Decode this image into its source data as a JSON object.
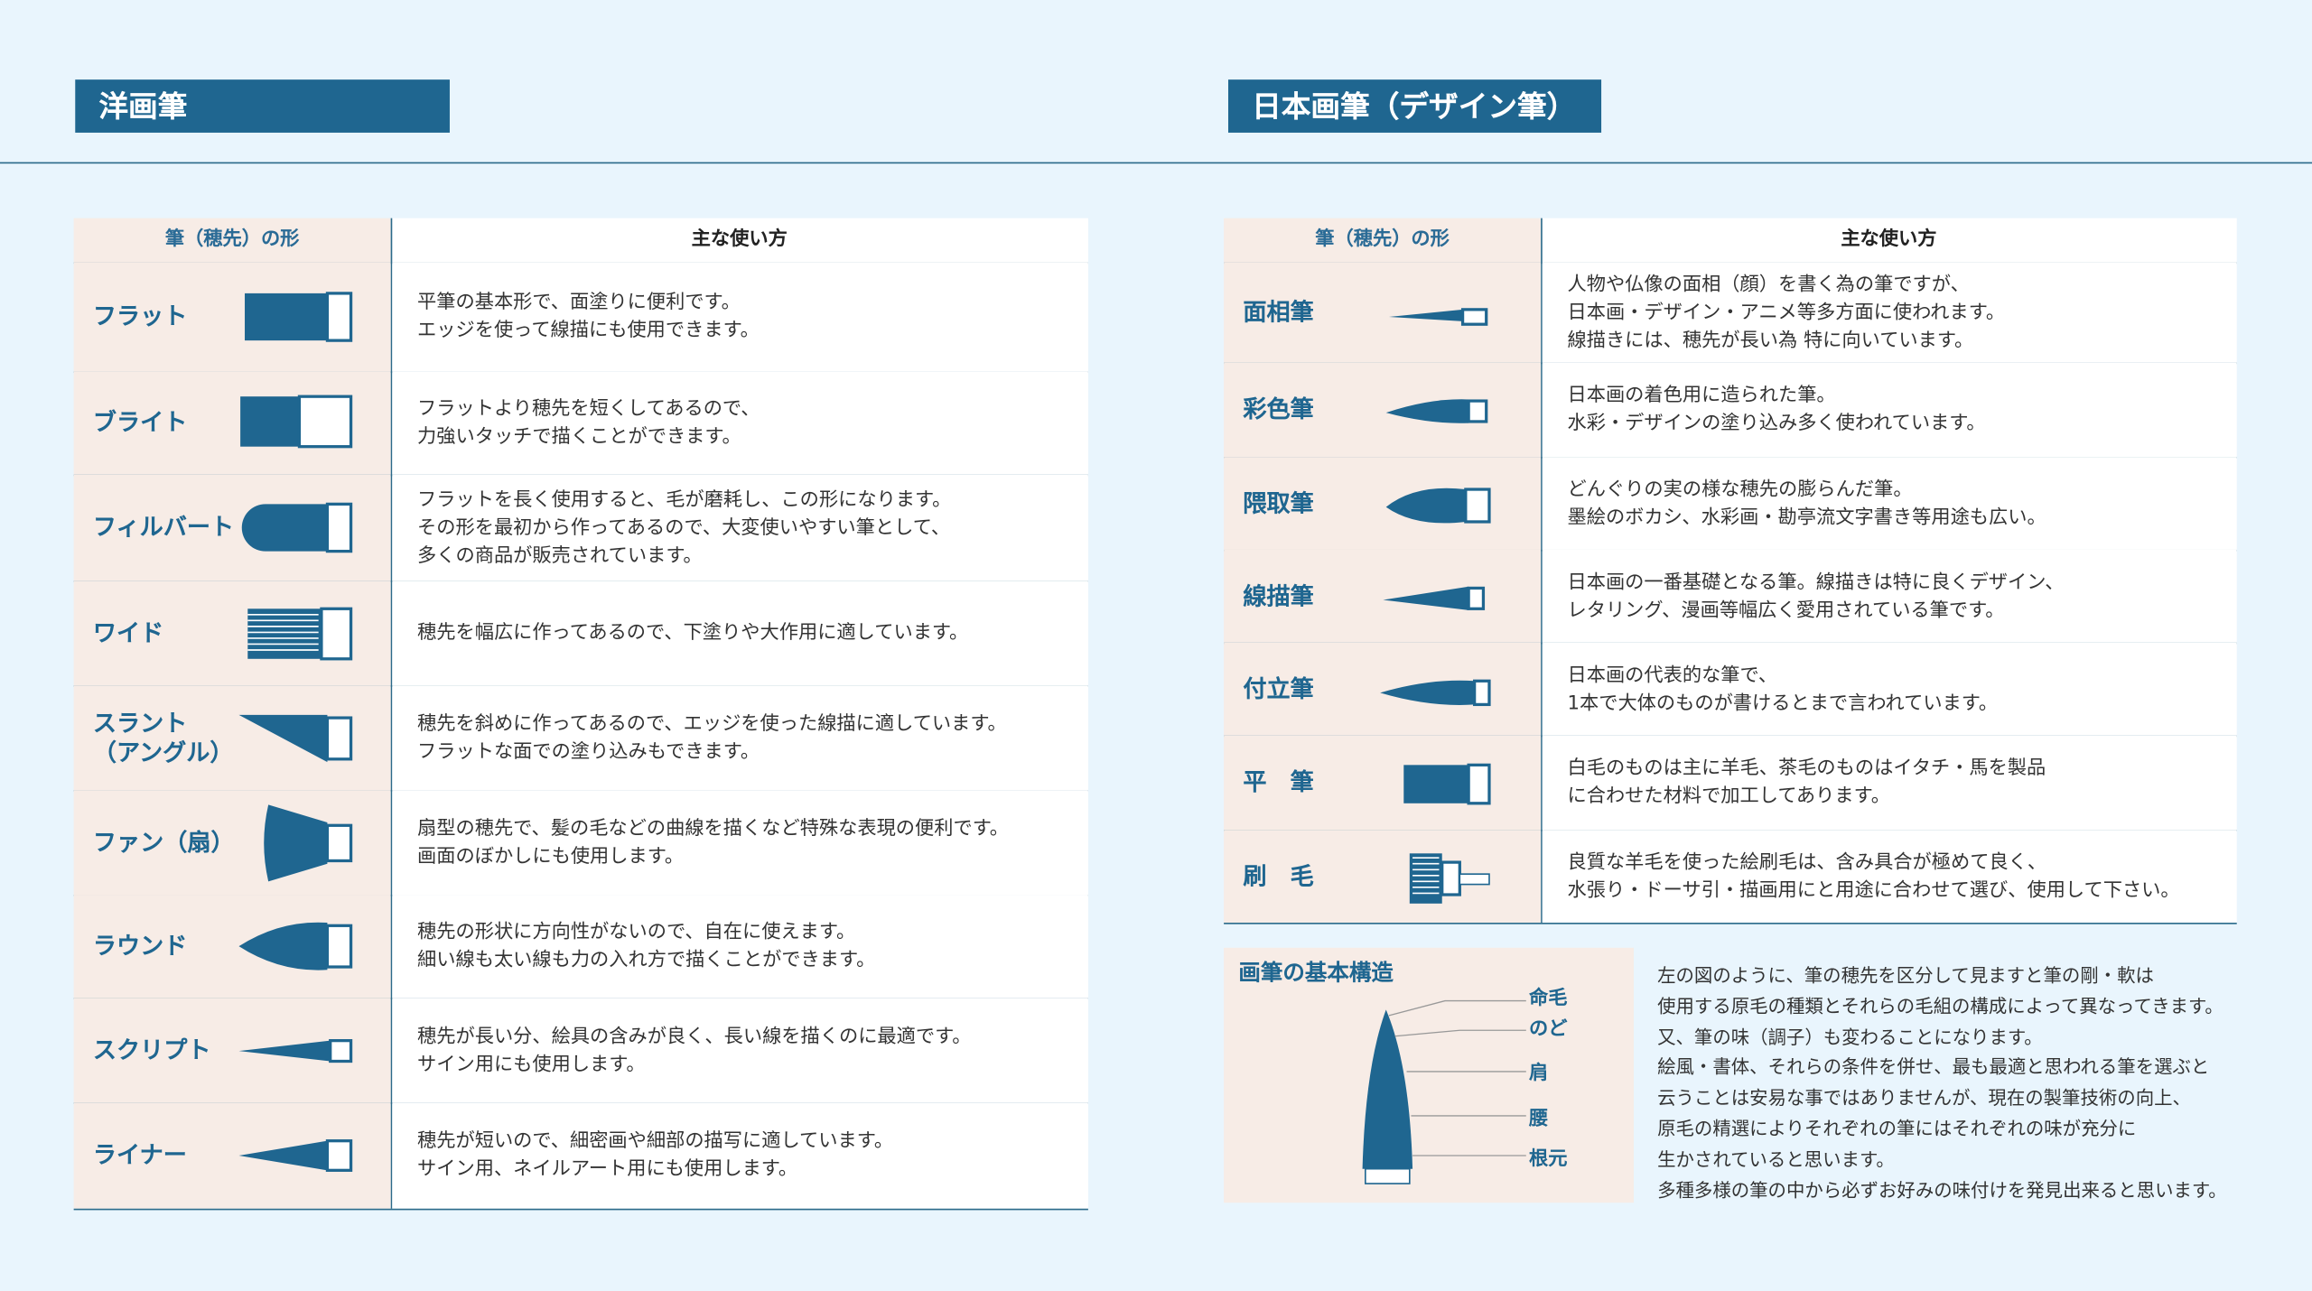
{
  "western": {
    "title": "洋画筆",
    "header": [
      "筆（穂先）の形",
      "主な使い方"
    ],
    "rows": [
      {
        "name": [
          "フラット"
        ],
        "desc": [
          "平筆の基本形で、面塗りに便利です。",
          "エッジを使って線描にも使用できます。"
        ]
      },
      {
        "name": [
          "ブライト"
        ],
        "desc": [
          "フラットより穂先を短くしてあるので、",
          "力強いタッチで描くことができます。"
        ]
      },
      {
        "name": [
          "フィルバート"
        ],
        "desc": [
          "フラットを長く使用すると、毛が磨耗し、この形になります。",
          "その形を最初から作ってあるので、大変使いやすい筆として、",
          "多くの商品が販売されています。"
        ]
      },
      {
        "name": [
          "ワイド"
        ],
        "desc": [
          "穂先を幅広に作ってあるので、下塗りや大作用に適しています。"
        ]
      },
      {
        "name": [
          "スラント",
          "（アングル）"
        ],
        "desc": [
          "穂先を斜めに作ってあるので、エッジを使った線描に適しています。",
          "フラットな面での塗り込みもできます。"
        ]
      },
      {
        "name": [
          "ファン（扇）"
        ],
        "desc": [
          "扇型の穂先で、髪の毛などの曲線を描くなど特殊な表現の便利です。",
          "画面のぼかしにも使用します。"
        ]
      },
      {
        "name": [
          "ラウンド"
        ],
        "desc": [
          "穂先の形状に方向性がないので、自在に使えます。",
          "細い線も太い線も力の入れ方で描くことができます。"
        ]
      },
      {
        "name": [
          "スクリプト"
        ],
        "desc": [
          "穂先が長い分、絵具の含みが良く、長い線を描くのに最適です。",
          "サイン用にも使用します。"
        ]
      },
      {
        "name": [
          "ライナー"
        ],
        "desc": [
          "穂先が短いので、細密画や細部の描写に適しています。",
          "サイン用、ネイルアート用にも使用します。"
        ]
      }
    ]
  },
  "japanese": {
    "title": "日本画筆（デザイン筆）",
    "header": [
      "筆（穂先）の形",
      "主な使い方"
    ],
    "rows": [
      {
        "name": [
          "面相筆"
        ],
        "desc": [
          "人物や仏像の面相（顔）を書く為の筆ですが、",
          "日本画・デザイン・アニメ等多方面に使われます。",
          "線描きには、穂先が長い為 特に向いています。"
        ]
      },
      {
        "name": [
          "彩色筆"
        ],
        "desc": [
          "日本画の着色用に造られた筆。",
          "水彩・デザインの塗り込み多く使われています。"
        ]
      },
      {
        "name": [
          "隈取筆"
        ],
        "desc": [
          "どんぐりの実の様な穂先の膨らんだ筆。",
          "墨絵のボカシ、水彩画・勘亭流文字書き等用途も広い。"
        ]
      },
      {
        "name": [
          "線描筆"
        ],
        "desc": [
          "日本画の一番基礎となる筆。線描きは特に良くデザイン、",
          "レタリング、漫画等幅広く愛用されている筆です。"
        ]
      },
      {
        "name": [
          "付立筆"
        ],
        "desc": [
          "日本画の代表的な筆で、",
          "1本で大体のものが書けるとまで言われています。"
        ]
      },
      {
        "name": [
          "平　筆"
        ],
        "desc": [
          "白毛のものは主に羊毛、茶毛のものはイタチ・馬を製品",
          "に合わせた材料で加工してあります。"
        ]
      },
      {
        "name": [
          "刷　毛"
        ],
        "desc": [
          "良質な羊毛を使った絵刷毛は、含み具合が極めて良く、",
          "水張り・ドーサ引・描画用にと用途に合わせて選び、使用して下さい。"
        ]
      }
    ]
  },
  "structure": {
    "title": "画筆の基本構造",
    "parts": [
      "命毛",
      "のど",
      "肩",
      "腰",
      "根元"
    ],
    "text": [
      "左の図のように、筆の穂先を区分して見ますと筆の剛・軟は",
      "使用する原毛の種類とそれらの毛組の構成によって異なってきます。",
      "又、筆の味（調子）も変わることになります。",
      "絵風・書体、それらの条件を併せ、最も最適と思われる筆を選ぶと",
      "云うことは安易な事ではありませんが、現在の製筆技術の向上、",
      "原毛の精選によりそれぞれの筆にはそれぞれの味が充分に",
      "生かされていると思います。",
      "多種多様の筆の中から必ずお好みの味付けを発見出来ると思います。"
    ]
  }
}
